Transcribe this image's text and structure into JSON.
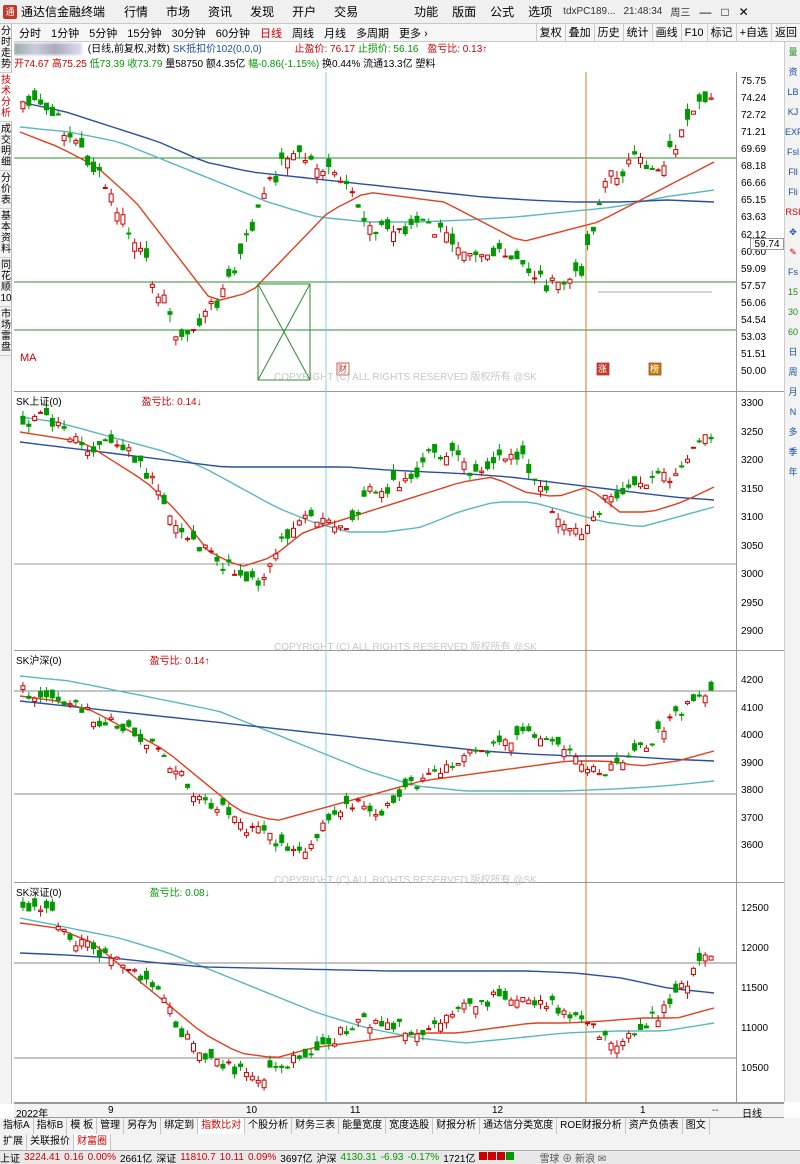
{
  "menubar": {
    "app_title": "通达信金融终端",
    "menus": [
      "行情",
      "市场",
      "资讯",
      "发现",
      "开户",
      "交易"
    ],
    "right_menus": [
      "功能",
      "版面",
      "公式",
      "选项"
    ],
    "server": "tdxPC189...",
    "clock": "21:48:34",
    "weekday": "周三",
    "win_buttons": [
      "—",
      "□",
      "✕"
    ]
  },
  "periods": [
    "分时",
    "1分钟",
    "5分钟",
    "15分钟",
    "30分钟",
    "60分钟",
    "日线",
    "周线",
    "月线",
    "多周期",
    "更多"
  ],
  "active_period": "日线",
  "toolbar_buttons": [
    "复权",
    "叠加",
    "历史",
    "统计",
    "画线",
    "F10",
    "标记",
    "+自选",
    "返回"
  ],
  "left_tabs": [
    "分时走势",
    "技术分析",
    "成交明细",
    "分价表",
    "基本资料",
    "同花顺10",
    "市场雷盘"
  ],
  "active_left_tab": "技术分析",
  "right_tabs": [
    "量",
    "资",
    "LB",
    "KJ",
    "EXPM",
    "Fsl",
    "Fll",
    "Fli",
    "RSI",
    "✥",
    "✎",
    "Fs",
    "15",
    "30",
    "60",
    "日",
    "周",
    "月",
    "N",
    "多",
    "季",
    "年"
  ],
  "stock": {
    "mode": "(日线,前复权,对数)",
    "cost_label": "SK抵扣价102(0,0,0)",
    "stop_profit": "止盈价: 76.17",
    "stop_loss": "止损价: 56.16",
    "pnl_ratio": "盈亏比: 0.13↑",
    "open": "开74.67",
    "high": "高75.25",
    "low": "低73.39",
    "close": "收73.79",
    "volume": "量58750",
    "amount": "额4.35亿",
    "change": "幅-0.86(-1.15%)",
    "turnover": "换0.44%",
    "float": "流通13.3亿",
    "sector": "塑料"
  },
  "panes": [
    {
      "id": "main",
      "title": "",
      "ratio": "",
      "ticks": [
        "75.75",
        "74.24",
        "72.72",
        "71.21",
        "69.69",
        "68.18",
        "66.66",
        "65.15",
        "63.63",
        "62.12",
        "60.60",
        "59.09",
        "57.57",
        "56.06",
        "54.54",
        "53.03",
        "51.51",
        "50.00"
      ],
      "last_value": "59.74",
      "watermark": "COPYRIGHT (C) ALL RIGHTS RESERVED 版权所有 @SK",
      "markers": [
        "财",
        "涨",
        "榜"
      ],
      "indicator": "MA"
    },
    {
      "id": "sh",
      "title": "SK上证(0)",
      "ratio": "盈亏比: 0.14↓",
      "ticks": [
        "3300",
        "3250",
        "3200",
        "3150",
        "3100",
        "3050",
        "3000",
        "2950",
        "2900"
      ],
      "watermark": "COPYRIGHT (C) ALL RIGHTS RESERVED 版权所有 @SK"
    },
    {
      "id": "hs",
      "title": "SK沪深(0)",
      "ratio": "盈亏比: 0.14↑",
      "ticks": [
        "4200",
        "4100",
        "4000",
        "3900",
        "3800",
        "3700",
        "3600"
      ],
      "watermark": "COPYRIGHT (C) ALL RIGHTS RESERVED 版权所有 @SK"
    },
    {
      "id": "sz",
      "title": "SK深证(0)",
      "ratio": "盈亏比: 0.08↓",
      "ticks": [
        "12500",
        "12000",
        "11500",
        "11000",
        "10500"
      ],
      "watermark": "COPYRIGHT (C) ALL RIGHTS RESERVED 版权所有 @SK"
    }
  ],
  "date_axis": {
    "labels": [
      "2022年",
      "9",
      "10",
      "11",
      "12",
      "1",
      "--"
    ],
    "period": "日线"
  },
  "bottom_tabs_row1": [
    "指标A",
    "指标B",
    "模 板",
    "管理",
    "另存为",
    "绑定到",
    "指数比对",
    "个股分析",
    "财务三表",
    "能量宽度",
    "宽度选股",
    "财报分析",
    "通达信分类宽度",
    "ROE财报分析",
    "资产负债表",
    "图文"
  ],
  "active_bottom_tab": "指数比对",
  "bottom_tabs_row2": [
    "扩展",
    "关联报价",
    "财富圈"
  ],
  "status": {
    "sh_label": "上证",
    "sh_value": "3224.41",
    "sh_chg": "0.16",
    "sh_pct": "0.00%",
    "sh_amt": "2661亿",
    "sz_label": "深证",
    "sz_value": "11810.7",
    "sz_chg": "10.11",
    "sz_pct": "0.09%",
    "sz_amt": "3697亿",
    "hs_label": "沪深",
    "hs_value": "4130.31",
    "hs_chg": "-6.93",
    "hs_pct": "-0.17%",
    "hs_amt": "1721亿",
    "tray": "雪球 ⊕ 新浪 ✉"
  },
  "colors": {
    "up": "#d00000",
    "down": "#009900",
    "ma_short": "#e04020",
    "ma_mid": "#2a4fa0",
    "ma_long": "#5ab7c2",
    "hline": "#2e8b2e",
    "vline_cyan": "#7fd0e0",
    "vline_orange": "#d08020"
  }
}
